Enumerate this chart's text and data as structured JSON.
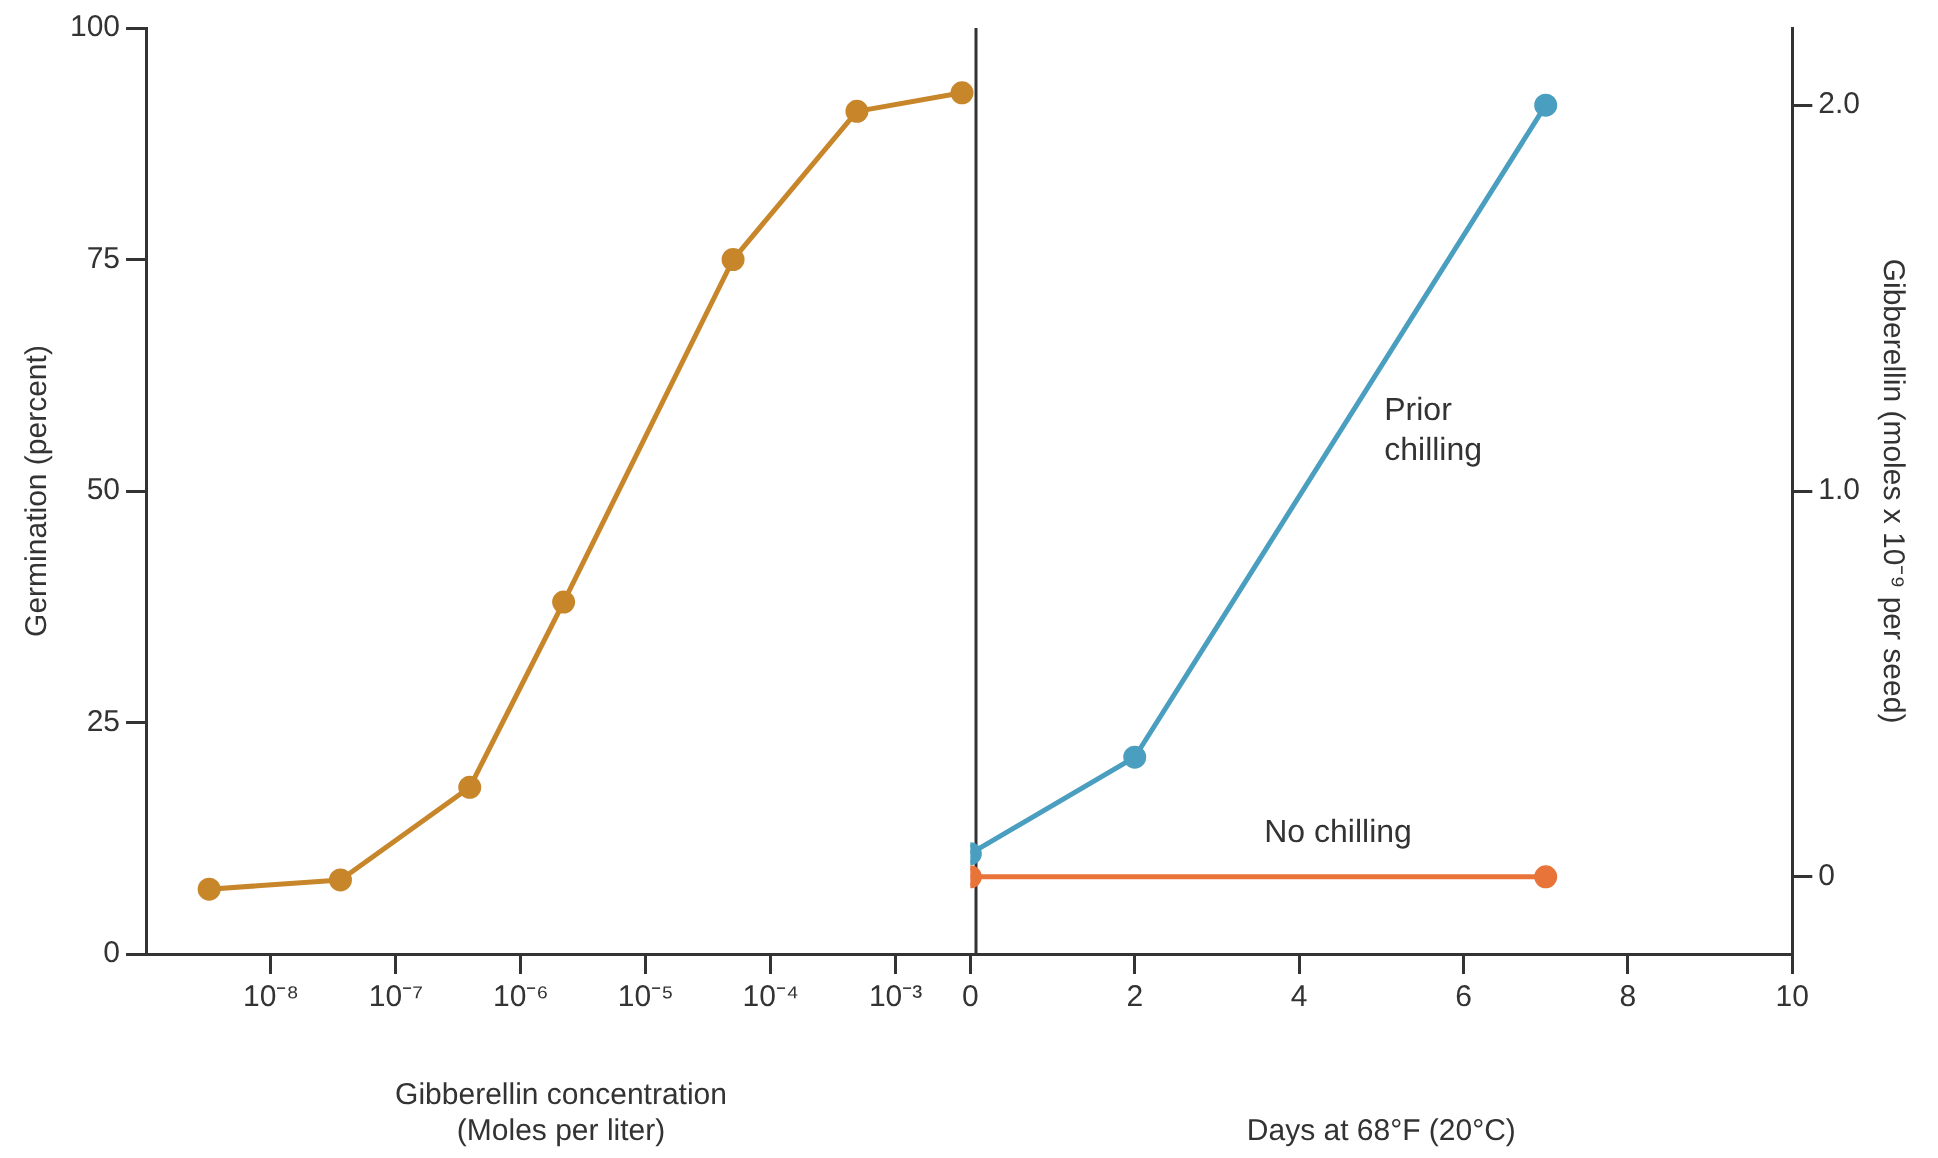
{
  "chart_data": [
    {
      "type": "line",
      "xlabel": "Gibberellin concentration\n(Moles per liter)",
      "ylabel": "Germination (percent)",
      "log": "x",
      "marker": "circle",
      "grid": false,
      "legend": false,
      "x": [
        3.2e-09,
        3.6e-08,
        3.9e-07,
        2.2e-06,
        5e-05,
        0.00049,
        0.0034
      ],
      "series": [
        {
          "color": "#c8862a",
          "values": [
            7,
            8,
            18,
            38,
            75,
            91,
            93
          ]
        }
      ],
      "xlim": [
        1e-09,
        0.0044
      ],
      "xticks": [
        {
          "value": 1e-08,
          "label": "10⁻⁸"
        },
        {
          "value": 1e-07,
          "label": "10⁻⁷"
        },
        {
          "value": 1e-06,
          "label": "10⁻⁶"
        },
        {
          "value": 1e-05,
          "label": "10⁻⁵"
        },
        {
          "value": 0.0001,
          "label": "10⁻⁴"
        },
        {
          "value": 0.001,
          "label": "10⁻³"
        }
      ],
      "ylim": [
        0,
        100
      ],
      "yticks": [
        0,
        25,
        50,
        75,
        100
      ]
    },
    {
      "type": "line",
      "xlabel": "Days at 68°F (20°C)",
      "y2label": "Gibberellin (moles x 10⁻⁹ per seed)",
      "marker": "circle",
      "grid": false,
      "legend": false,
      "x": [
        0,
        2,
        7
      ],
      "series": [
        {
          "name": "Prior chilling",
          "color": "#4a9ec0",
          "axis": "y2",
          "values": [
            0.06,
            0.31,
            2.0
          ]
        },
        {
          "name": "No chilling",
          "color": "#e8743a",
          "axis": "y2",
          "x": [
            0,
            7
          ],
          "values": [
            0,
            0
          ]
        }
      ],
      "xlim": [
        0,
        10
      ],
      "xticks": [
        0,
        2,
        4,
        6,
        8,
        10
      ],
      "y2lim": [
        -0.2,
        2.2
      ],
      "y2ticks": [
        0,
        {
          "value": 1,
          "label": "1.0"
        },
        {
          "value": 2,
          "label": "2.0"
        }
      ]
    }
  ]
}
